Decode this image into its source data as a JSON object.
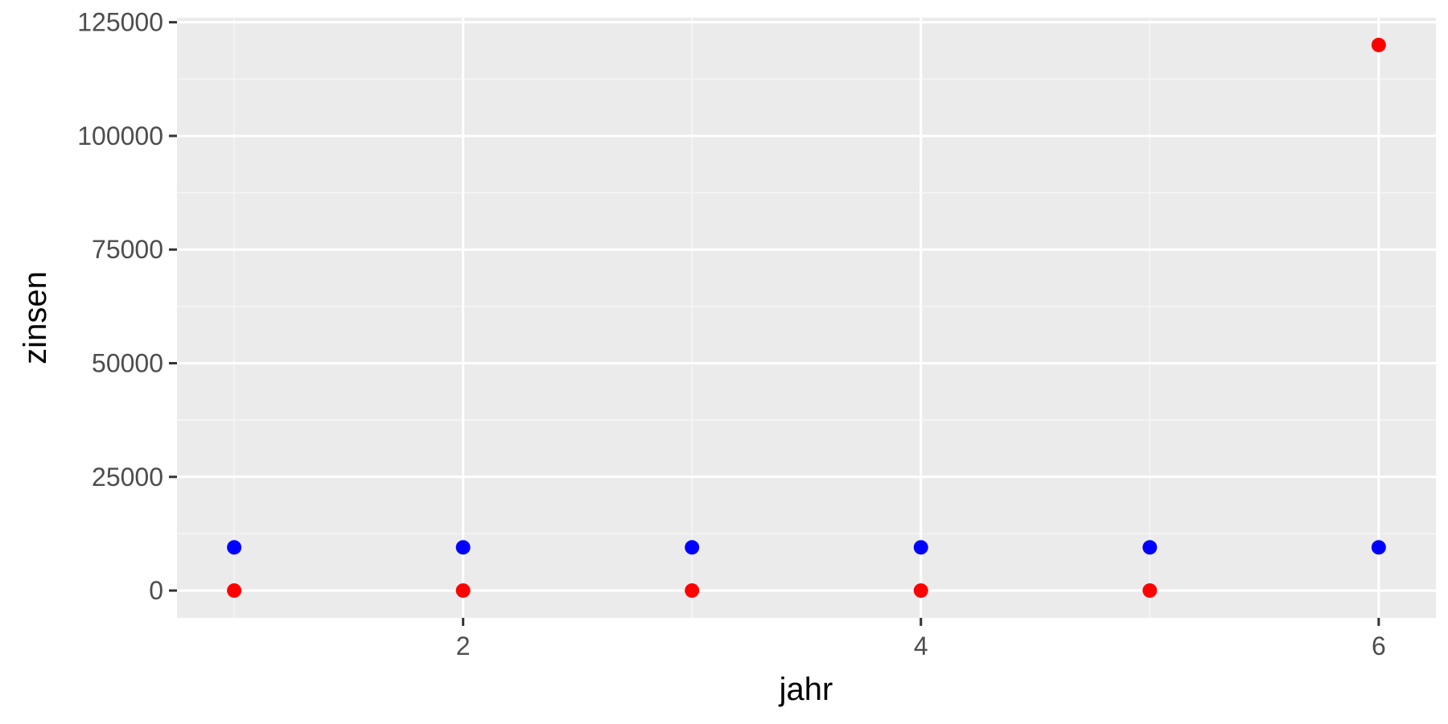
{
  "chart_data": {
    "type": "scatter",
    "title": "",
    "xlabel": "jahr",
    "ylabel": "zinsen",
    "xlim": [
      0.75,
      6.25
    ],
    "ylim": [
      -6000,
      126000
    ],
    "x_ticks": [
      2,
      4,
      6
    ],
    "y_ticks": [
      0,
      25000,
      50000,
      75000,
      100000,
      125000
    ],
    "x_tick_labels": [
      "2",
      "4",
      "6"
    ],
    "y_tick_labels": [
      "0",
      "25000",
      "50000",
      "75000",
      "100000",
      "125000"
    ],
    "grid": true,
    "legend": "none",
    "series": [
      {
        "color": "#0000ff",
        "points": [
          {
            "x": 1,
            "y": 9500
          },
          {
            "x": 2,
            "y": 9500
          },
          {
            "x": 3,
            "y": 9500
          },
          {
            "x": 4,
            "y": 9500
          },
          {
            "x": 5,
            "y": 9500
          },
          {
            "x": 6,
            "y": 9500
          }
        ]
      },
      {
        "color": "#ff0000",
        "points": [
          {
            "x": 1,
            "y": 0
          },
          {
            "x": 2,
            "y": 0
          },
          {
            "x": 3,
            "y": 0
          },
          {
            "x": 4,
            "y": 0
          },
          {
            "x": 5,
            "y": 0
          },
          {
            "x": 6,
            "y": 120000
          }
        ]
      }
    ],
    "colors": {
      "panel_background": "#ebebeb",
      "grid_major": "#ffffff",
      "grid_minor": "#f5f5f5"
    }
  }
}
